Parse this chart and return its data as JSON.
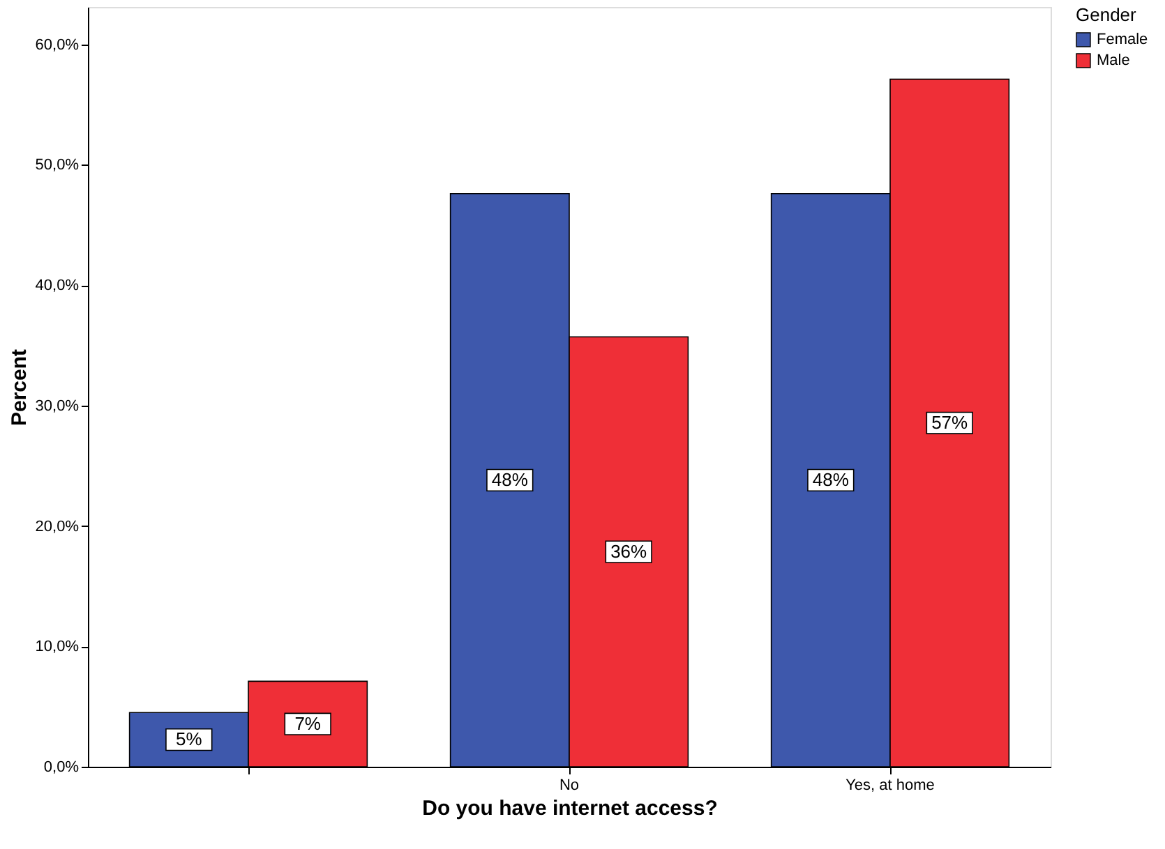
{
  "chart_data": {
    "type": "bar",
    "xlabel": "Do you have internet access?",
    "ylabel": "Percent",
    "legend_title": "Gender",
    "legend": "top right",
    "categories": [
      null,
      "No",
      "Yes, at home"
    ],
    "series": [
      {
        "name": "Female",
        "color": "#3e58ac",
        "values": [
          4.5,
          47.6,
          47.6
        ],
        "value_labels": [
          "5%",
          "48%",
          "48%"
        ]
      },
      {
        "name": "Male",
        "color": "#ef2f37",
        "values": [
          7.1,
          35.7,
          57.1
        ],
        "value_labels": [
          "7%",
          "36%",
          "57%"
        ]
      }
    ],
    "ylim": [
      0,
      63.1
    ],
    "yticks": [
      {
        "value": 0,
        "label": "0,0%"
      },
      {
        "value": 10,
        "label": "10,0%"
      },
      {
        "value": 20,
        "label": "20,0%"
      },
      {
        "value": 30,
        "label": "30,0%"
      },
      {
        "value": 40,
        "label": "40,0%"
      },
      {
        "value": 50,
        "label": "50,0%"
      },
      {
        "value": 60,
        "label": "60,0%"
      }
    ]
  }
}
